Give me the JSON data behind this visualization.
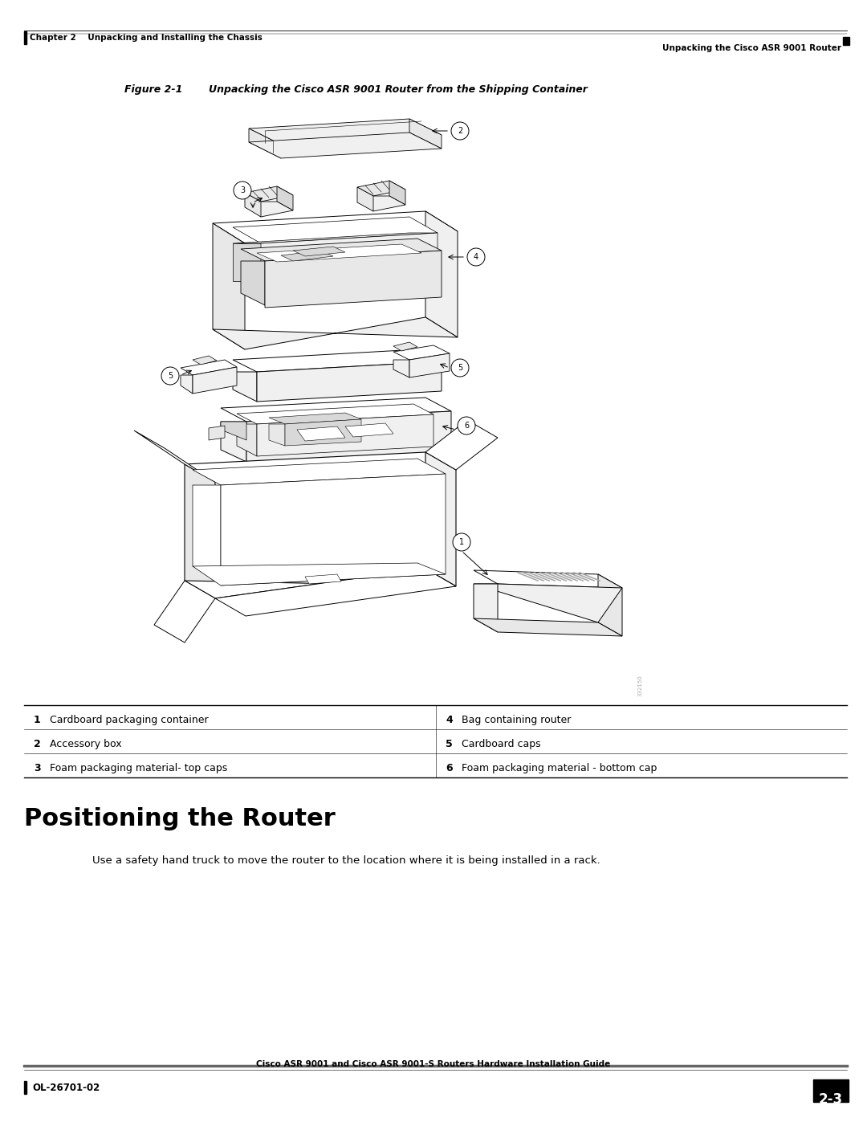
{
  "page_width": 10.8,
  "page_height": 13.97,
  "dpi": 100,
  "background_color": "#ffffff",
  "header_left": "Chapter 2    Unpacking and Installing the Chassis",
  "header_right": "Unpacking the Cisco ASR 9001 Router",
  "footer_left": "OL-26701-02",
  "footer_center": "Cisco ASR 9001 and Cisco ASR 9001-S Routers Hardware Installation Guide",
  "footer_page": "2-3",
  "figure_label": "Figure 2-1",
  "figure_caption": "Unpacking the Cisco ASR 9001 Router from the Shipping Container",
  "section_title": "Positioning the Router",
  "section_body": "Use a safety hand truck to move the router to the location where it is being installed in a rack.",
  "table_left": [
    {
      "num": "1",
      "desc": "Cardboard packaging container"
    },
    {
      "num": "2",
      "desc": "Accessory box"
    },
    {
      "num": "3",
      "desc": "Foam packaging material- top caps"
    }
  ],
  "table_right": [
    {
      "num": "4",
      "desc": "Bag containing router"
    },
    {
      "num": "5",
      "desc": "Cardboard caps"
    },
    {
      "num": "6",
      "desc": "Foam packaging material - bottom cap"
    }
  ],
  "lc": "#000000",
  "tc": "#000000",
  "gray": "#aaaaaa",
  "light_fill": "#f5f5f5",
  "mid_fill": "#e0e0e0",
  "dark_fill": "#cccccc"
}
